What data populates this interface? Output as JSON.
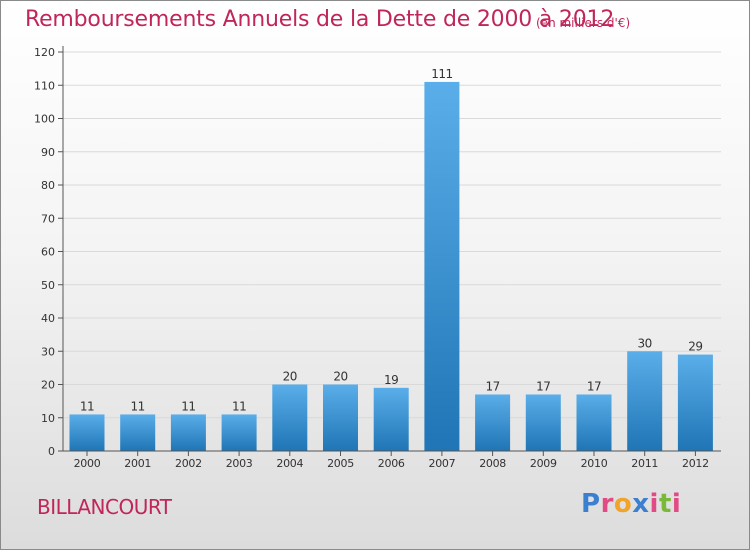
{
  "header": {
    "title": "Remboursements Annuels de la Dette de 2000 à 2012",
    "unit": "(en milliers d'€)"
  },
  "footer": {
    "city": "BILLANCOURT",
    "logo_text": "Proxiti",
    "logo_colors": [
      "#3a7fd0",
      "#e24a86",
      "#f2a32a",
      "#3a7fd0",
      "#e24a86",
      "#7ab83a",
      "#e24a86"
    ]
  },
  "colors": {
    "title": "#c0265b",
    "bar_top": "#5aaee9",
    "bar_bottom": "#1f75b5",
    "grid": "#d9d9d9",
    "axis": "#555555",
    "text": "#333333"
  },
  "chart_data": {
    "type": "bar",
    "title": "Remboursements Annuels de la Dette de 2000 à 2012",
    "categories": [
      "2000",
      "2001",
      "2002",
      "2003",
      "2004",
      "2005",
      "2006",
      "2007",
      "2008",
      "2009",
      "2010",
      "2011",
      "2012"
    ],
    "values": [
      11,
      11,
      11,
      11,
      20,
      20,
      19,
      111,
      17,
      17,
      17,
      30,
      29
    ],
    "ylim": [
      0,
      120
    ],
    "yticks": [
      0,
      10,
      20,
      30,
      40,
      50,
      60,
      70,
      80,
      90,
      100,
      110,
      120
    ],
    "grid": true,
    "xlabel": "",
    "ylabel": ""
  }
}
